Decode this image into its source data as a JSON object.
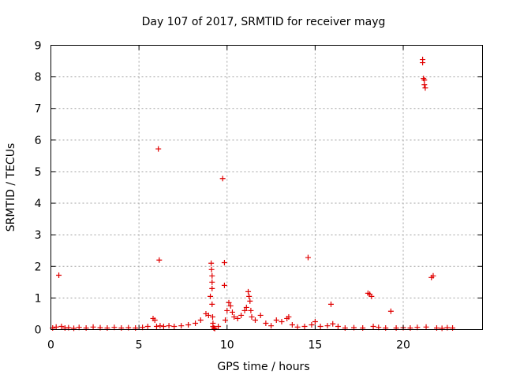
{
  "chart_data": {
    "type": "scatter",
    "title": "Day 107 of 2017, SRMTID for receiver mayg",
    "xlabel": "GPS time / hours",
    "ylabel": "SRMTID / TECUs",
    "xlim": [
      0,
      24.5
    ],
    "ylim": [
      0,
      9
    ],
    "xticks": [
      0,
      5,
      10,
      15,
      20
    ],
    "yticks": [
      0,
      1,
      2,
      3,
      4,
      5,
      6,
      7,
      8,
      9
    ],
    "xtick_labels": [
      "0",
      "5",
      "10",
      "15",
      "20"
    ],
    "ytick_labels": [
      "0",
      "1",
      "2",
      "3",
      "4",
      "5",
      "6",
      "7",
      "8",
      "9"
    ],
    "grid": true,
    "marker": "+",
    "series_color": "#e00000",
    "series": [
      {
        "name": "SRMTID",
        "x": [
          0.1,
          0.3,
          0.45,
          0.6,
          0.8,
          1.0,
          1.3,
          1.6,
          2.0,
          2.4,
          2.8,
          3.2,
          3.6,
          4.0,
          4.4,
          4.8,
          5.2,
          5.5,
          5.8,
          5.9,
          6.0,
          6.1,
          6.15,
          6.2,
          6.4,
          6.7,
          7.0,
          7.4,
          7.8,
          8.2,
          8.5,
          8.8,
          8.95,
          9.05,
          9.1,
          9.12,
          9.15,
          9.15,
          9.15,
          9.15,
          9.18,
          9.2,
          9.2,
          9.25,
          9.3,
          9.5,
          9.75,
          9.85,
          9.85,
          9.9,
          10.0,
          10.1,
          10.2,
          10.3,
          10.4,
          10.6,
          10.8,
          11.0,
          11.1,
          11.2,
          11.25,
          11.3,
          11.35,
          11.4,
          11.6,
          11.9,
          12.2,
          12.5,
          12.8,
          13.1,
          13.4,
          13.5,
          13.7,
          14.0,
          14.4,
          14.6,
          14.8,
          15.0,
          15.3,
          15.7,
          15.9,
          16.0,
          16.3,
          16.7,
          17.2,
          17.7,
          18.0,
          18.1,
          18.2,
          18.3,
          18.6,
          19.0,
          19.3,
          19.6,
          20.0,
          20.4,
          20.8,
          21.1,
          21.1,
          21.15,
          21.2,
          21.2,
          21.25,
          21.3,
          21.6,
          21.7,
          21.9,
          22.2,
          22.5,
          22.8
        ],
        "y": [
          0.05,
          0.08,
          1.72,
          0.1,
          0.05,
          0.06,
          0.04,
          0.07,
          0.05,
          0.08,
          0.06,
          0.05,
          0.07,
          0.05,
          0.06,
          0.05,
          0.07,
          0.1,
          0.35,
          0.3,
          0.1,
          5.72,
          2.2,
          0.12,
          0.1,
          0.12,
          0.1,
          0.12,
          0.15,
          0.2,
          0.3,
          0.5,
          0.45,
          1.05,
          2.1,
          1.9,
          1.7,
          1.5,
          1.3,
          0.8,
          0.4,
          0.2,
          0.1,
          0.05,
          0.03,
          0.1,
          4.78,
          2.12,
          1.4,
          0.3,
          0.6,
          0.85,
          0.75,
          0.55,
          0.4,
          0.35,
          0.45,
          0.6,
          0.7,
          1.2,
          1.05,
          0.9,
          0.6,
          0.4,
          0.3,
          0.45,
          0.2,
          0.12,
          0.3,
          0.25,
          0.35,
          0.4,
          0.15,
          0.08,
          0.1,
          2.28,
          0.15,
          0.25,
          0.1,
          0.12,
          0.8,
          0.18,
          0.1,
          0.05,
          0.06,
          0.05,
          1.15,
          1.12,
          1.05,
          0.1,
          0.07,
          0.05,
          0.58,
          0.05,
          0.06,
          0.05,
          0.07,
          8.55,
          8.45,
          7.95,
          7.9,
          7.75,
          7.65,
          0.08,
          1.65,
          1.7,
          0.05,
          0.04,
          0.06,
          0.05
        ]
      }
    ]
  }
}
